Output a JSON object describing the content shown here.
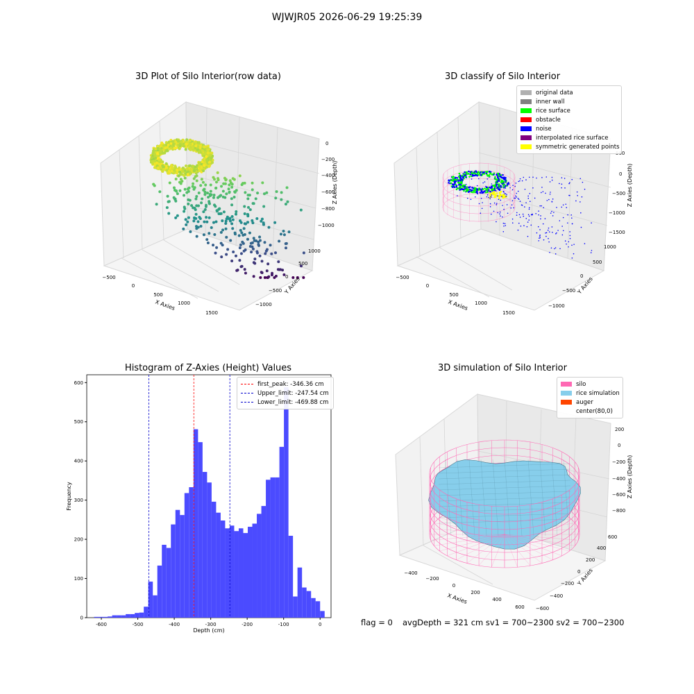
{
  "suptitle": "WJWJR05 2026-06-29 19:25:39",
  "colors": {
    "histogram_bar": "#4b4bff",
    "first_peak_line": "#ff0000",
    "limit_line": "#0000cc",
    "silo_wire": "#ff69b4",
    "rice_surface": "#87ceeb",
    "noise": "#0000ff"
  },
  "plot1": {
    "title": "3D Plot of Silo Interior(row data)",
    "xlabel": "X Axies",
    "ylabel": "Y Axies",
    "zlabel": "Z Axies (Depth)",
    "xticks": [
      "−500",
      "0",
      "500",
      "1000",
      "1500"
    ],
    "yticks": [
      "1000",
      "500",
      "0",
      "−500",
      "−1000"
    ],
    "zticks": [
      "0",
      "−200",
      "−400",
      "−600",
      "−800",
      "−1000"
    ]
  },
  "plot2": {
    "title": "3D classify of Silo Interior",
    "xlabel": "X Axies",
    "ylabel": "Y Axies",
    "zlabel": "Z Axies (Depth)",
    "xticks": [
      "−500",
      "0",
      "500",
      "1000",
      "1500"
    ],
    "yticks": [
      "1000",
      "500",
      "0",
      "−500",
      "−1000"
    ],
    "zticks": [
      "500",
      "0",
      "−500",
      "−1000",
      "−1500"
    ],
    "legend": [
      {
        "label": "original data",
        "color": "#b0b0b0"
      },
      {
        "label": "inner wall",
        "color": "#808080"
      },
      {
        "label": "rice surface",
        "color": "#00ff00"
      },
      {
        "label": "obstacle",
        "color": "#ff0000"
      },
      {
        "label": "noise",
        "color": "#0000ff"
      },
      {
        "label": "interpolated rice surface",
        "color": "#800080"
      },
      {
        "label": "symmetric generated points",
        "color": "#ffff00"
      }
    ]
  },
  "plot4": {
    "title": "3D simulation of Silo Interior",
    "xlabel": "X Axies",
    "ylabel": "Y Axies",
    "zlabel": "Z Axies (Depth)",
    "xticks": [
      "−400",
      "−200",
      "0",
      "200",
      "400",
      "600"
    ],
    "yticks": [
      "600",
      "400",
      "200",
      "0",
      "−200",
      "−400",
      "−600"
    ],
    "zticks": [
      "200",
      "0",
      "−200",
      "−400",
      "−600",
      "−800"
    ],
    "legend": [
      {
        "label": "silo",
        "color": "#ff69b4"
      },
      {
        "label": "rice simulation",
        "color": "#87ceeb"
      },
      {
        "label": "auger",
        "color": "#ff4500"
      },
      {
        "label": "center(80,0)",
        "color": ""
      }
    ]
  },
  "footer": {
    "flag": "flag = 0",
    "stats": "avgDepth = 321 cm  sv1 = 700~2300  sv2 = 700~2300"
  },
  "chart_data": [
    {
      "type": "bar",
      "title": "Histogram of Z-Axies (Height) Values",
      "xlabel": "Depth (cm)",
      "ylabel": "Frequency",
      "xlim": [
        -640,
        30
      ],
      "ylim": [
        0,
        620
      ],
      "xticks": [
        -600,
        -500,
        -400,
        -300,
        -200,
        -100,
        0
      ],
      "yticks": [
        0,
        100,
        200,
        300,
        400,
        500,
        600
      ],
      "bin_width": 12.4,
      "bin_edges_start": -620,
      "values": [
        2,
        2,
        2,
        3,
        6,
        6,
        6,
        9,
        9,
        12,
        13,
        28,
        92,
        57,
        133,
        186,
        178,
        238,
        275,
        262,
        318,
        333,
        481,
        448,
        372,
        345,
        296,
        268,
        248,
        228,
        235,
        221,
        228,
        216,
        232,
        240,
        265,
        285,
        352,
        358,
        358,
        436,
        588,
        209,
        54,
        128,
        77,
        68,
        50,
        42,
        17
      ],
      "vlines": [
        {
          "x": -346.36,
          "label": "first_peak: -346.36 cm",
          "color": "#ff0000"
        },
        {
          "x": -247.54,
          "label": "Upper_limit: -247.54 cm",
          "color": "#0000cc"
        },
        {
          "x": -469.88,
          "label": "Lower_limit: -469.88 cm",
          "color": "#0000cc"
        }
      ],
      "legend_position": "top-right"
    }
  ]
}
